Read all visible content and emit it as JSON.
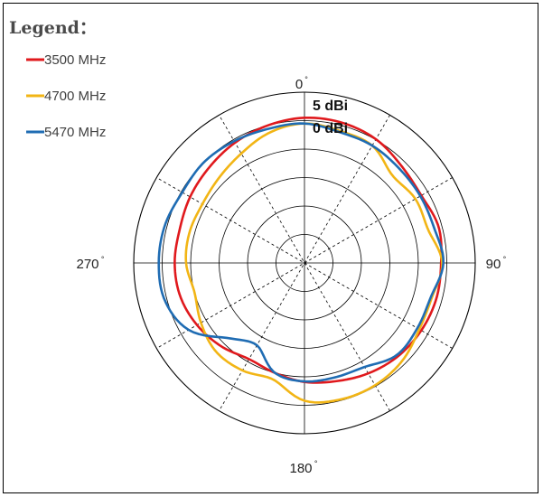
{
  "chart_data": {
    "type": "polar-line",
    "title": "",
    "legend": {
      "title": "Legend：",
      "placement": "top-left"
    },
    "angular_axis": {
      "direction": "clockwise",
      "zero": "top",
      "tick_labels": [
        {
          "angle": 0,
          "label": "0"
        },
        {
          "angle": 90,
          "label": "90"
        },
        {
          "angle": 180,
          "label": "180"
        },
        {
          "angle": 270,
          "label": "270"
        }
      ],
      "degree_symbol": "°",
      "spoke_interval_deg": 30
    },
    "radial_axis": {
      "unit": "dBi",
      "rings": 6,
      "ring_labels": [
        {
          "value": 5,
          "label": "5 dBi"
        },
        {
          "value": 0,
          "label": "0 dBi"
        }
      ],
      "range_rings": [
        -25,
        5
      ],
      "ring_step": 5
    },
    "grid": true,
    "angles": [
      0,
      15,
      30,
      45,
      60,
      75,
      90,
      105,
      120,
      135,
      150,
      165,
      180,
      195,
      210,
      225,
      240,
      255,
      270,
      285,
      300,
      315,
      330,
      345,
      360
    ],
    "series": [
      {
        "name": "3500 MHz",
        "color": "#e0191d",
        "values": [
          0.5,
          0.5,
          0.1,
          -0.9,
          -1.3,
          -0.6,
          -1.0,
          -1.0,
          -1.3,
          -1.8,
          -2.6,
          -3.5,
          -4.1,
          -5.0,
          -5.5,
          -4.3,
          -3.2,
          -2.4,
          -2.2,
          -2.3,
          -1.8,
          -1.3,
          -0.6,
          0.0,
          0.5
        ]
      },
      {
        "name": "4700 MHz",
        "color": "#f2b515",
        "values": [
          -0.5,
          -1.0,
          -1.2,
          -3.2,
          -2.5,
          -2.5,
          -0.8,
          -1.8,
          -1.7,
          -0.7,
          -0.2,
          -0.2,
          -0.8,
          -3.8,
          -3.2,
          -3.0,
          -4.0,
          -5.0,
          -4.2,
          -4.1,
          -4.3,
          -3.8,
          -2.8,
          -1.3,
          -0.5
        ]
      },
      {
        "name": "5470 MHz",
        "color": "#1f6cb3",
        "values": [
          -0.5,
          -1.2,
          -1.2,
          -1.5,
          -1.5,
          -1.4,
          -0.6,
          -2.0,
          -2.1,
          -2.1,
          -3.9,
          -4.2,
          -4.2,
          -5.0,
          -8.3,
          -6.3,
          -1.5,
          0.4,
          0.6,
          0.4,
          -0.2,
          0.0,
          -0.3,
          -0.6,
          -0.5
        ]
      }
    ]
  }
}
